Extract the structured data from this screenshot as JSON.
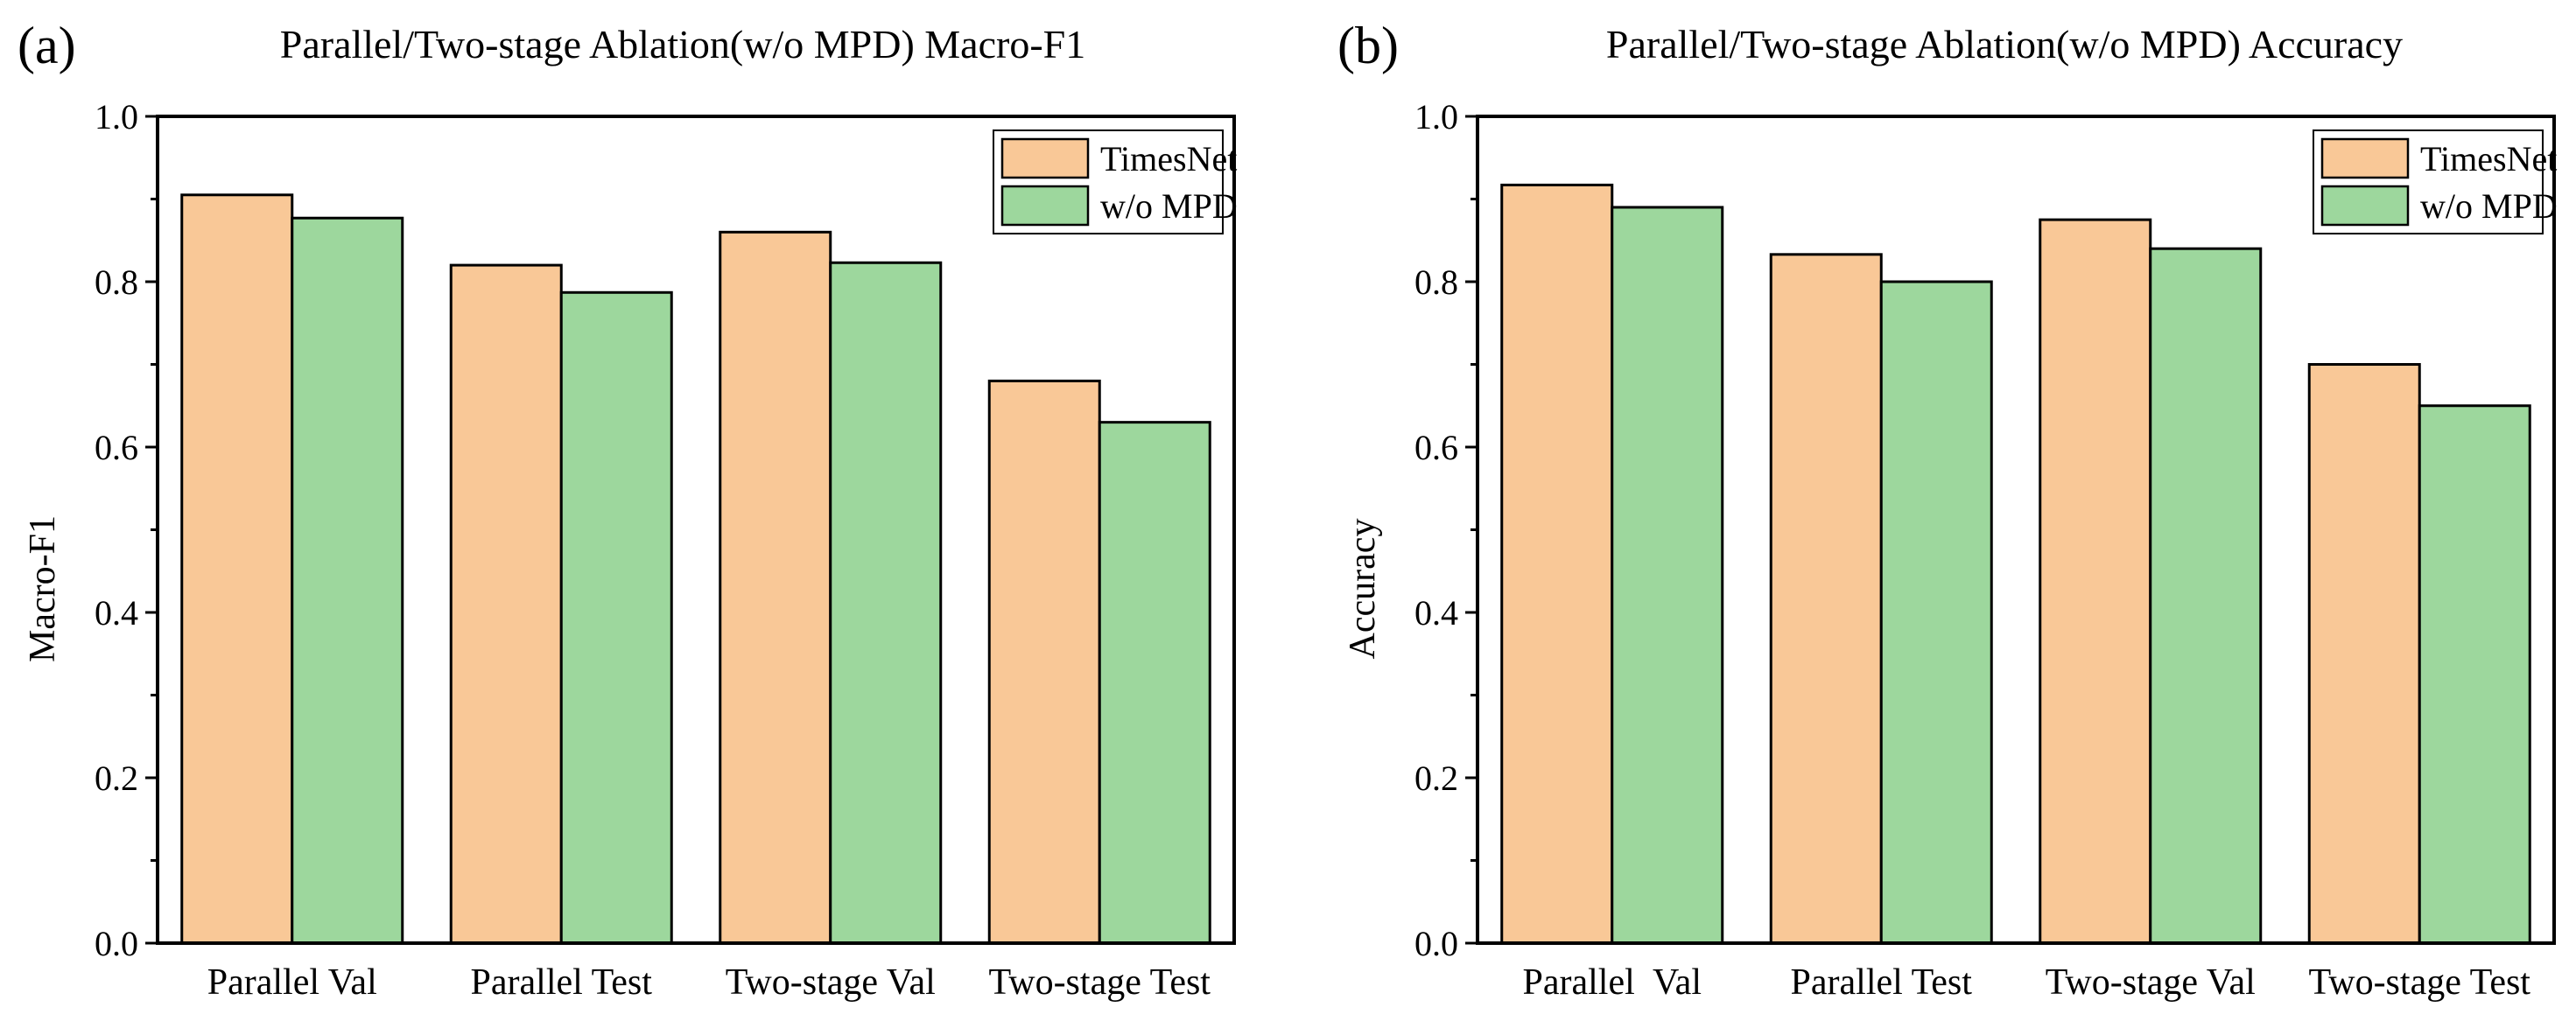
{
  "chart_data": [
    {
      "type": "bar",
      "panel_label": "(a)",
      "title": "Parallel/Two-stage Ablation(w/o MPD) Macro-F1",
      "xlabel": "",
      "ylabel": "Macro-F1",
      "ylim": [
        0.0,
        1.0
      ],
      "yticks": [
        "0.0",
        "0.2",
        "0.4",
        "0.6",
        "0.8",
        "1.0"
      ],
      "categories": [
        "Parallel Val",
        "Parallel Test",
        "Two-stage Val",
        "Two-stage Test"
      ],
      "series": [
        {
          "name": "TimesNet",
          "color": "#f9c897",
          "values": [
            0.905,
            0.82,
            0.86,
            0.68
          ]
        },
        {
          "name": "w/o MPD",
          "color": "#9dd79d",
          "values": [
            0.877,
            0.787,
            0.823,
            0.63
          ]
        }
      ],
      "legend_position": "top-right",
      "grid": false
    },
    {
      "type": "bar",
      "panel_label": "(b)",
      "title": "Parallel/Two-stage Ablation(w/o MPD) Accuracy",
      "xlabel": "",
      "ylabel": "Accuracy",
      "ylim": [
        0.0,
        1.0
      ],
      "yticks": [
        "0.0",
        "0.2",
        "0.4",
        "0.6",
        "0.8",
        "1.0"
      ],
      "categories": [
        "Parallel  Val",
        "Parallel Test",
        "Two-stage Val",
        "Two-stage Test"
      ],
      "series": [
        {
          "name": "TimesNet",
          "color": "#f9c897",
          "values": [
            0.917,
            0.833,
            0.875,
            0.7
          ]
        },
        {
          "name": "w/o MPD",
          "color": "#9dd79d",
          "values": [
            0.89,
            0.8,
            0.84,
            0.65
          ]
        }
      ],
      "legend_position": "top-right",
      "grid": false
    }
  ]
}
